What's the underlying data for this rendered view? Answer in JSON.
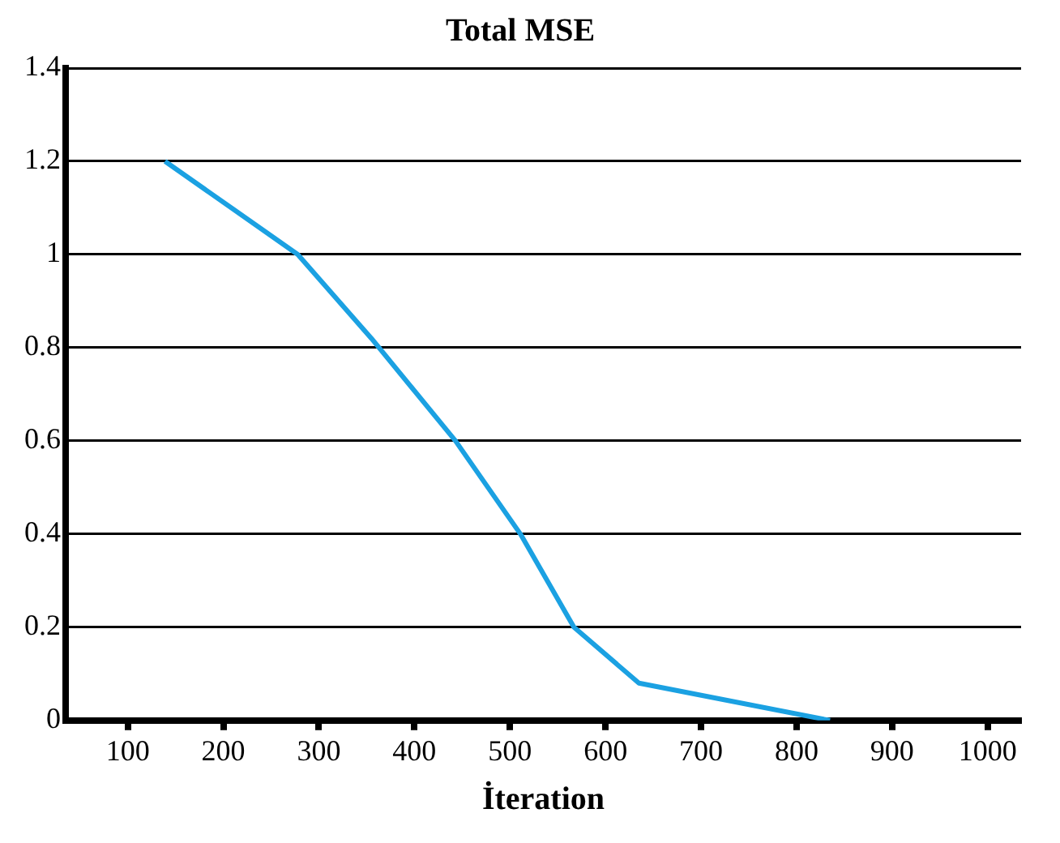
{
  "chart_data": {
    "type": "line",
    "title": "Total MSE",
    "xlabel": "İteration",
    "x": [
      139,
      278,
      355,
      443,
      511,
      567,
      635,
      835
    ],
    "series": [
      {
        "color": "#1ba1e2",
        "values": [
          1.2,
          1.0,
          0.82,
          0.6,
          0.4,
          0.2,
          0.08,
          0
        ]
      }
    ],
    "xlim": [
      35,
      1035
    ],
    "xticks": [
      100,
      200,
      300,
      400,
      500,
      600,
      700,
      800,
      900,
      1000
    ],
    "ylim": [
      0,
      1.4
    ],
    "yticks": [
      0,
      0.2,
      0.4,
      0.6,
      0.8,
      1,
      1.2,
      1.4
    ],
    "grid": "y",
    "legend": false,
    "marker": "none",
    "line_style": "solid"
  }
}
